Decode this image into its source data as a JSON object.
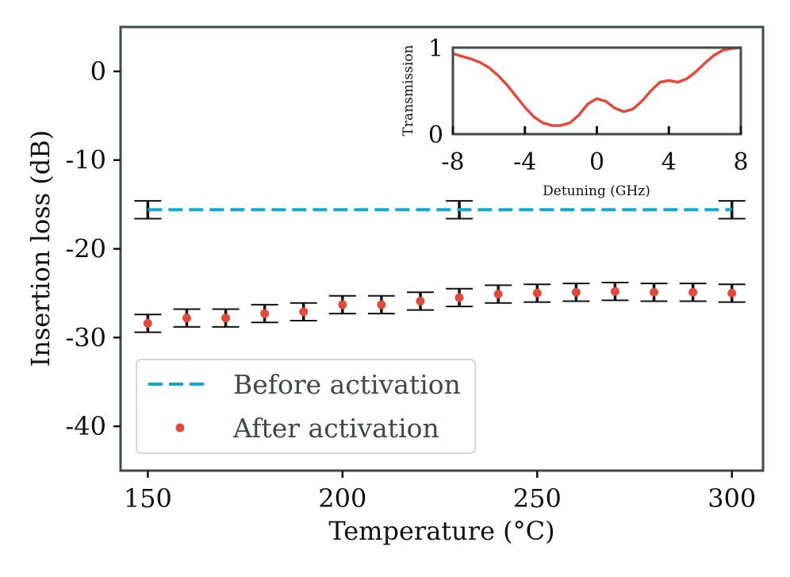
{
  "chart_data": [
    {
      "type": "scatter",
      "title": "",
      "xlabel": "Temperature (°C)",
      "ylabel": "Insertion loss (dB)",
      "xlim": [
        143,
        308
      ],
      "ylim": [
        -45,
        5
      ],
      "xticks": [
        150,
        200,
        250,
        300
      ],
      "xtick_labels": [
        "150",
        "200",
        "250",
        "300"
      ],
      "yticks": [
        0,
        -10,
        -20,
        -30,
        -40
      ],
      "ytick_labels": [
        "0",
        "-10",
        "-20",
        "-30",
        "-40"
      ],
      "series": [
        {
          "name": "Before activation",
          "style": "dashed-line",
          "color": "#17a8c9",
          "line_x": [
            150,
            300
          ],
          "line_y": [
            -15.6,
            -15.6
          ],
          "x": [
            150,
            230,
            300
          ],
          "y": [
            -15.6,
            -15.6,
            -15.6
          ],
          "err": [
            1.0,
            1.0,
            1.0
          ]
        },
        {
          "name": "After activation",
          "style": "points",
          "color": "#e24a3b",
          "x": [
            150,
            160,
            170,
            180,
            190,
            200,
            210,
            220,
            230,
            240,
            250,
            260,
            270,
            280,
            290,
            300
          ],
          "y": [
            -28.4,
            -27.8,
            -27.8,
            -27.3,
            -27.1,
            -26.3,
            -26.3,
            -25.9,
            -25.5,
            -25.1,
            -25.0,
            -24.9,
            -24.8,
            -24.9,
            -24.9,
            -25.0
          ],
          "err": [
            1.0,
            1.0,
            1.0,
            1.0,
            1.0,
            1.0,
            1.0,
            1.0,
            1.0,
            1.0,
            1.0,
            1.0,
            1.0,
            1.0,
            1.0,
            1.0
          ]
        }
      ],
      "legend": {
        "placement": "bottom-left",
        "entries": [
          "Before activation",
          "After activation"
        ]
      },
      "grid": false,
      "axis_color": "#3d4a48"
    },
    {
      "type": "line",
      "title": "",
      "xlabel": "Detuning (GHz)",
      "ylabel": "Transmission",
      "xlim": [
        -8,
        8
      ],
      "ylim": [
        0,
        1
      ],
      "xticks": [
        -8,
        -4,
        0,
        4,
        8
      ],
      "xtick_labels": [
        "-8",
        "-4",
        "0",
        "4",
        "8"
      ],
      "yticks": [
        0,
        1
      ],
      "ytick_labels": [
        "0",
        "1"
      ],
      "placement": "inset top-right",
      "series": [
        {
          "name": "Transmission",
          "color": "#e24a3b",
          "x": [
            -8,
            -7.5,
            -7,
            -6.5,
            -6,
            -5.5,
            -5,
            -4.5,
            -4,
            -3.5,
            -3,
            -2.5,
            -2,
            -1.5,
            -1,
            -0.5,
            0,
            0.5,
            1,
            1.5,
            2,
            2.5,
            3,
            3.5,
            4,
            4.5,
            5,
            5.5,
            6,
            6.5,
            7,
            7.5,
            8
          ],
          "y": [
            0.93,
            0.9,
            0.87,
            0.83,
            0.77,
            0.68,
            0.57,
            0.44,
            0.31,
            0.2,
            0.13,
            0.1,
            0.1,
            0.13,
            0.22,
            0.35,
            0.41,
            0.38,
            0.3,
            0.26,
            0.29,
            0.38,
            0.5,
            0.6,
            0.62,
            0.6,
            0.64,
            0.72,
            0.82,
            0.91,
            0.97,
            0.99,
            1.0
          ]
        }
      ],
      "grid": false
    }
  ]
}
